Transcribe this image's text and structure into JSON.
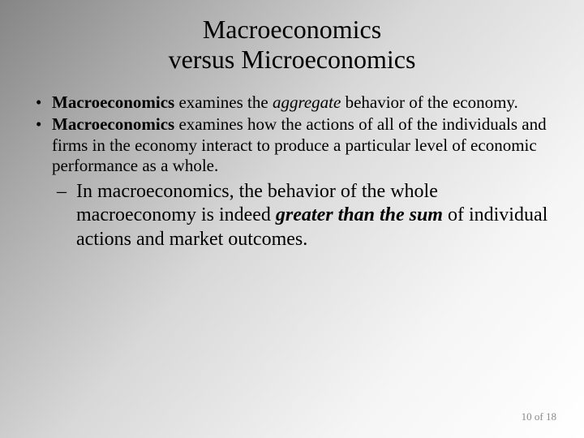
{
  "title_line1": "Macroeconomics",
  "title_line2": "versus Microeconomics",
  "bullets": [
    {
      "parts": [
        {
          "t": "Macroeconomics",
          "cls": "b"
        },
        {
          "t": " examines the ",
          "cls": ""
        },
        {
          "t": "aggregate",
          "cls": "i"
        },
        {
          "t": " behavior of the economy.",
          "cls": ""
        }
      ]
    },
    {
      "parts": [
        {
          "t": "Macroeconomics",
          "cls": "b"
        },
        {
          "t": " examines how the actions of all of the individuals and firms in the economy interact to produce a particular level of economic performance as a whole.",
          "cls": ""
        }
      ],
      "sub": [
        {
          "parts": [
            {
              "t": "In macroeconomics, the behavior of the whole macroeconomy is indeed ",
              "cls": ""
            },
            {
              "t": "greater than the sum",
              "cls": "bi"
            },
            {
              "t": " of individual actions and market outcomes.",
              "cls": ""
            }
          ]
        }
      ]
    }
  ],
  "footer": {
    "page": "10",
    "sep": " of ",
    "total": "18"
  },
  "colors": {
    "text": "#000000",
    "footer_text": "#8a8a8a",
    "bg_gradient_from": "#858585",
    "bg_gradient_to": "#ffffff"
  },
  "fonts": {
    "family": "Times New Roman",
    "title_size_pt": 24,
    "body_size_pt": 16,
    "sub_size_pt": 18,
    "footer_size_pt": 10
  }
}
